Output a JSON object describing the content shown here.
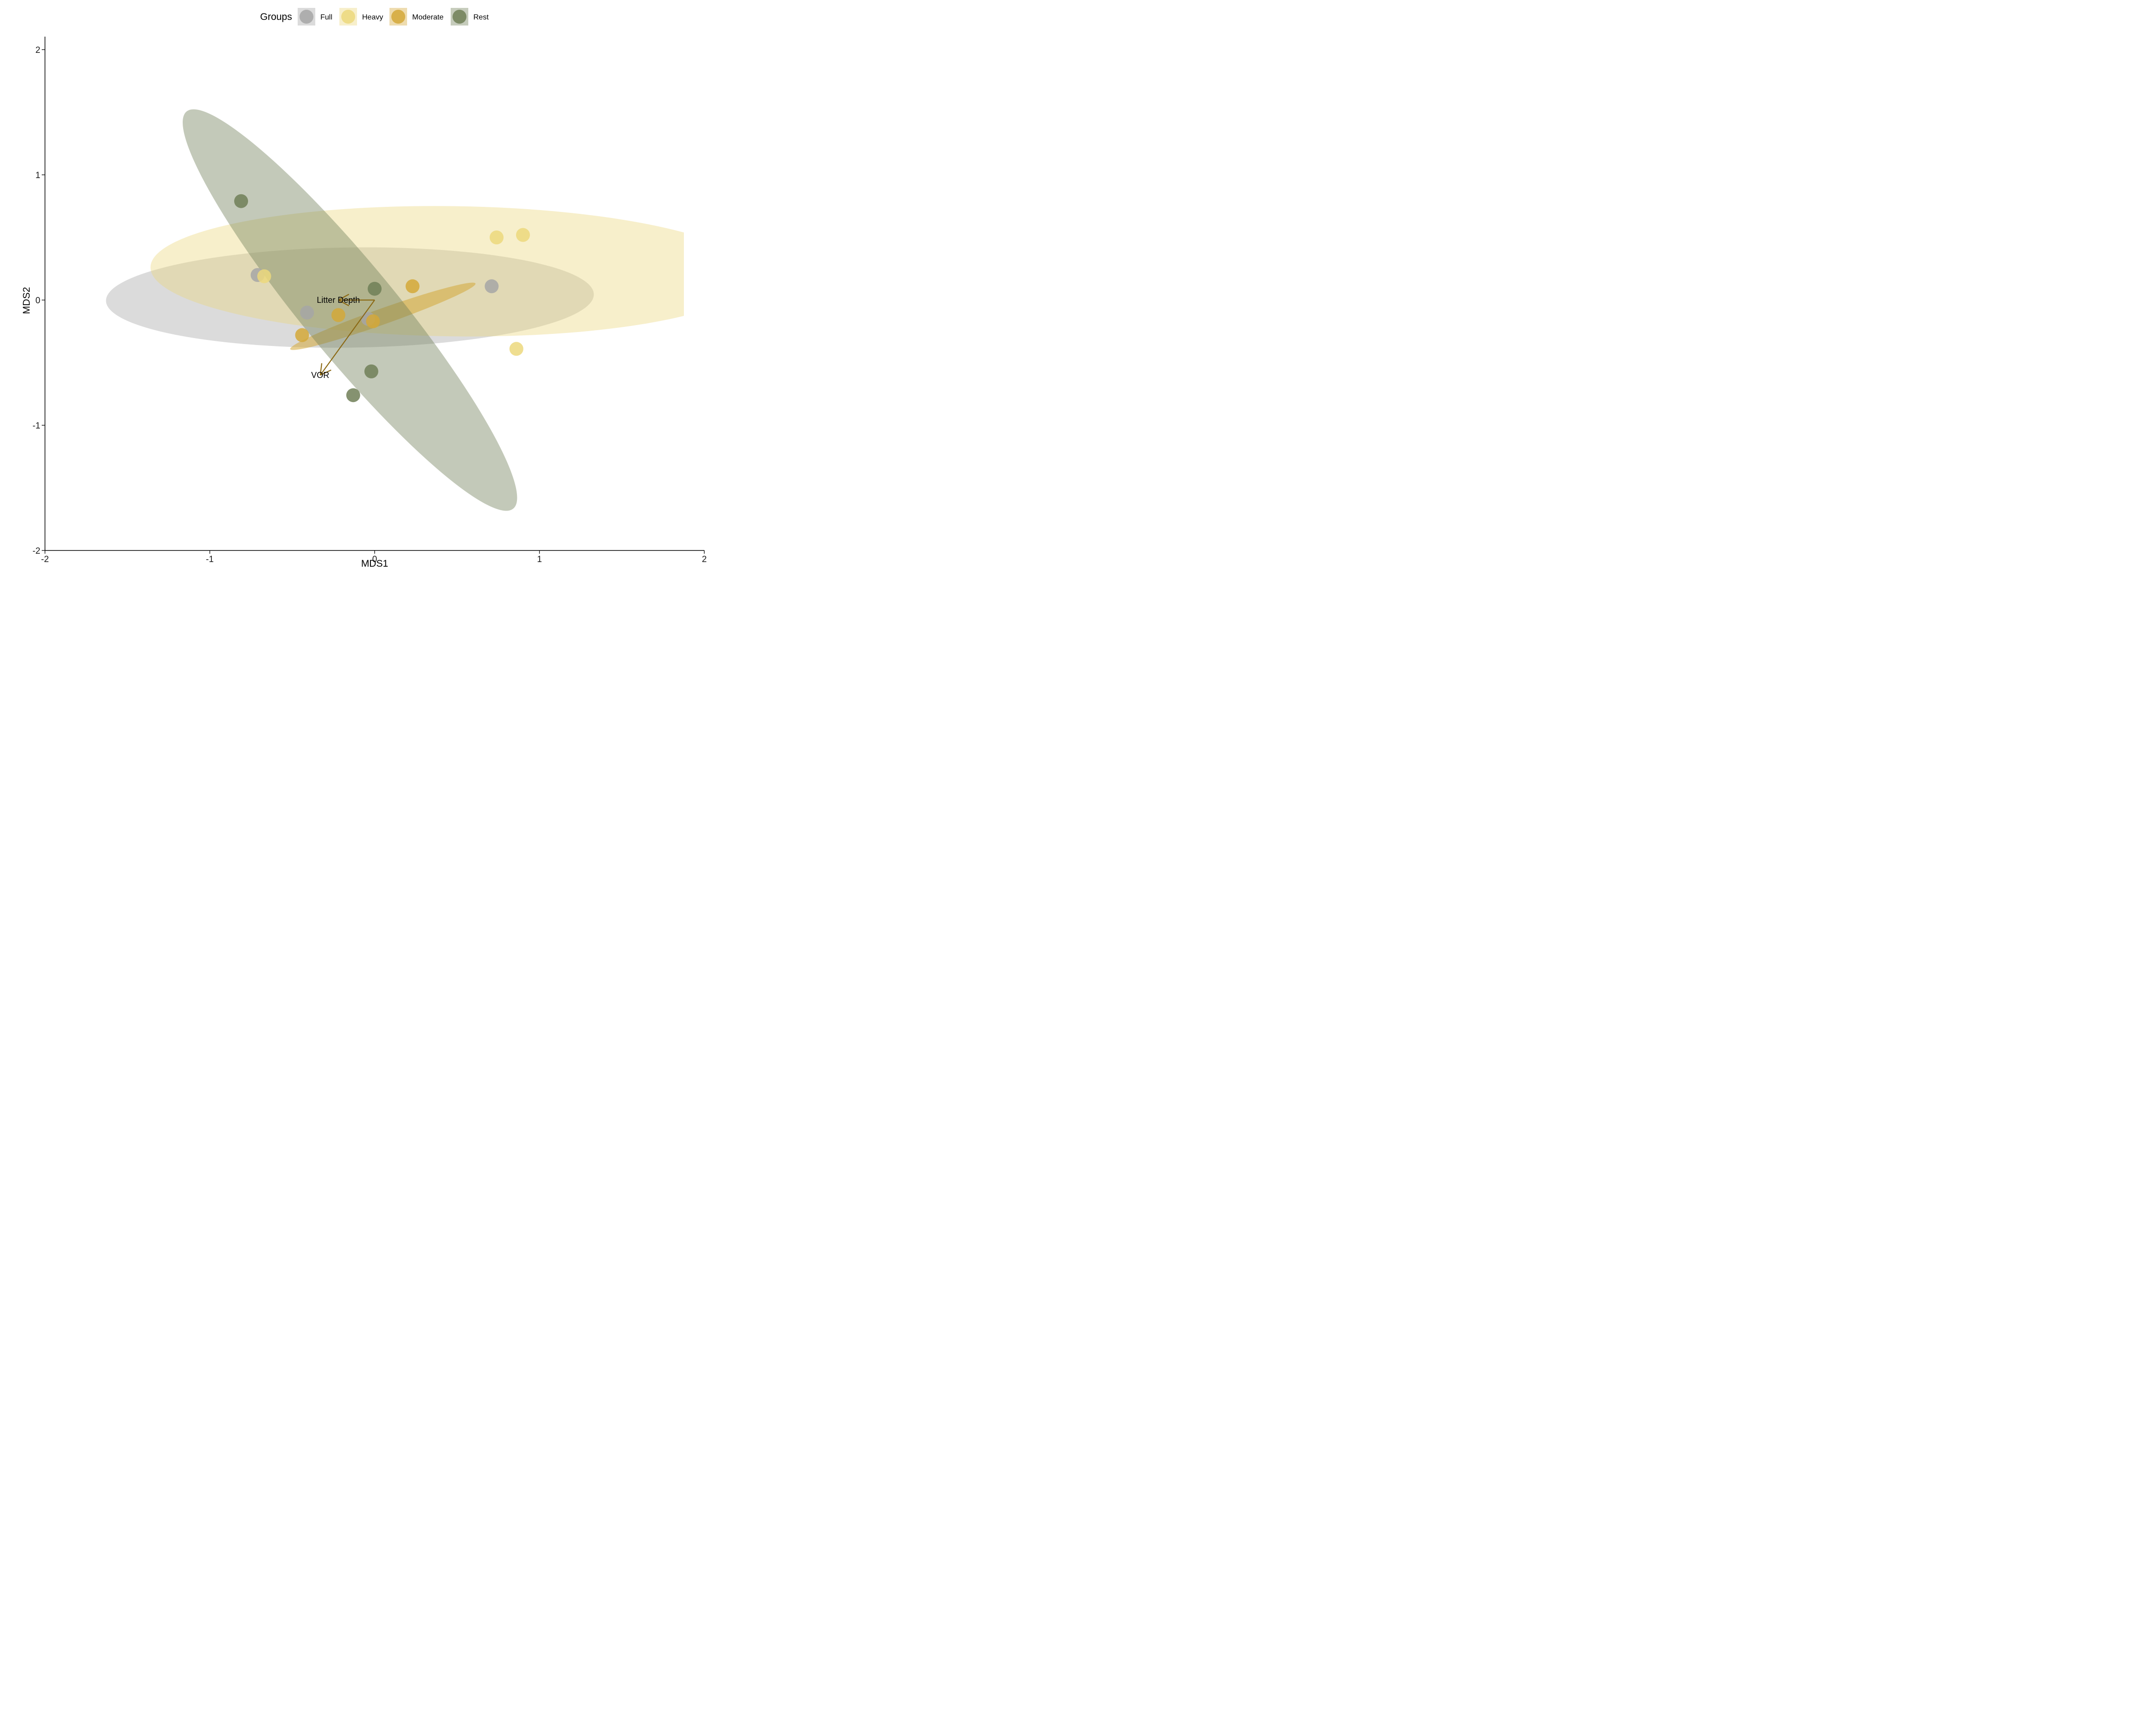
{
  "chart_data": {
    "type": "scatter",
    "xlabel": "MDS1",
    "ylabel": "MDS2",
    "xlim": [
      -2,
      2
    ],
    "ylim": [
      -2,
      2
    ],
    "xticks": [
      -2,
      -1,
      0,
      1,
      2
    ],
    "yticks": [
      -2,
      -1,
      0,
      1,
      2
    ],
    "grid": false,
    "legend": {
      "title": "Groups",
      "placement": "top",
      "entries": [
        "Full",
        "Heavy",
        "Moderate",
        "Rest"
      ]
    },
    "colors": {
      "Full": "#a6a6a6",
      "Heavy": "#ecd87d",
      "Moderate": "#d4a838",
      "Rest": "#707f57",
      "vector": "#8b6914"
    },
    "series": [
      {
        "name": "Full",
        "points": [
          [
            -0.71,
            0.2
          ],
          [
            -0.41,
            -0.1
          ],
          [
            0.71,
            0.11
          ],
          [
            -0.04,
            -0.15
          ]
        ]
      },
      {
        "name": "Heavy",
        "points": [
          [
            -0.67,
            0.19
          ],
          [
            0.74,
            0.5
          ],
          [
            0.9,
            0.52
          ],
          [
            0.86,
            -0.39
          ]
        ]
      },
      {
        "name": "Moderate",
        "points": [
          [
            -0.44,
            -0.28
          ],
          [
            -0.22,
            -0.12
          ],
          [
            -0.01,
            -0.17
          ],
          [
            0.23,
            0.11
          ]
        ]
      },
      {
        "name": "Rest",
        "points": [
          [
            -0.81,
            0.79
          ],
          [
            0.0,
            0.09
          ],
          [
            -0.02,
            -0.57
          ],
          [
            -0.13,
            -0.76
          ]
        ]
      }
    ],
    "ellipses": [
      {
        "group": "Full",
        "center": [
          -0.15,
          0.02
        ],
        "semi_axes": [
          1.48,
          0.4
        ],
        "angle_deg": 1
      },
      {
        "group": "Heavy",
        "center": [
          0.47,
          0.23
        ],
        "semi_axes": [
          1.83,
          0.52
        ],
        "angle_deg": -1
      },
      {
        "group": "Moderate",
        "center": [
          0.05,
          -0.13
        ],
        "semi_axes": [
          0.62,
          0.06
        ],
        "angle_deg": 25
      },
      {
        "group": "Rest",
        "center": [
          -0.15,
          -0.08
        ],
        "semi_axes": [
          1.87,
          0.3
        ],
        "angle_deg": -58
      }
    ],
    "vectors": [
      {
        "label": "Litter Depth",
        "end": [
          -0.22,
          0.0
        ]
      },
      {
        "label": "VOR",
        "end": [
          -0.33,
          -0.6
        ]
      }
    ]
  }
}
